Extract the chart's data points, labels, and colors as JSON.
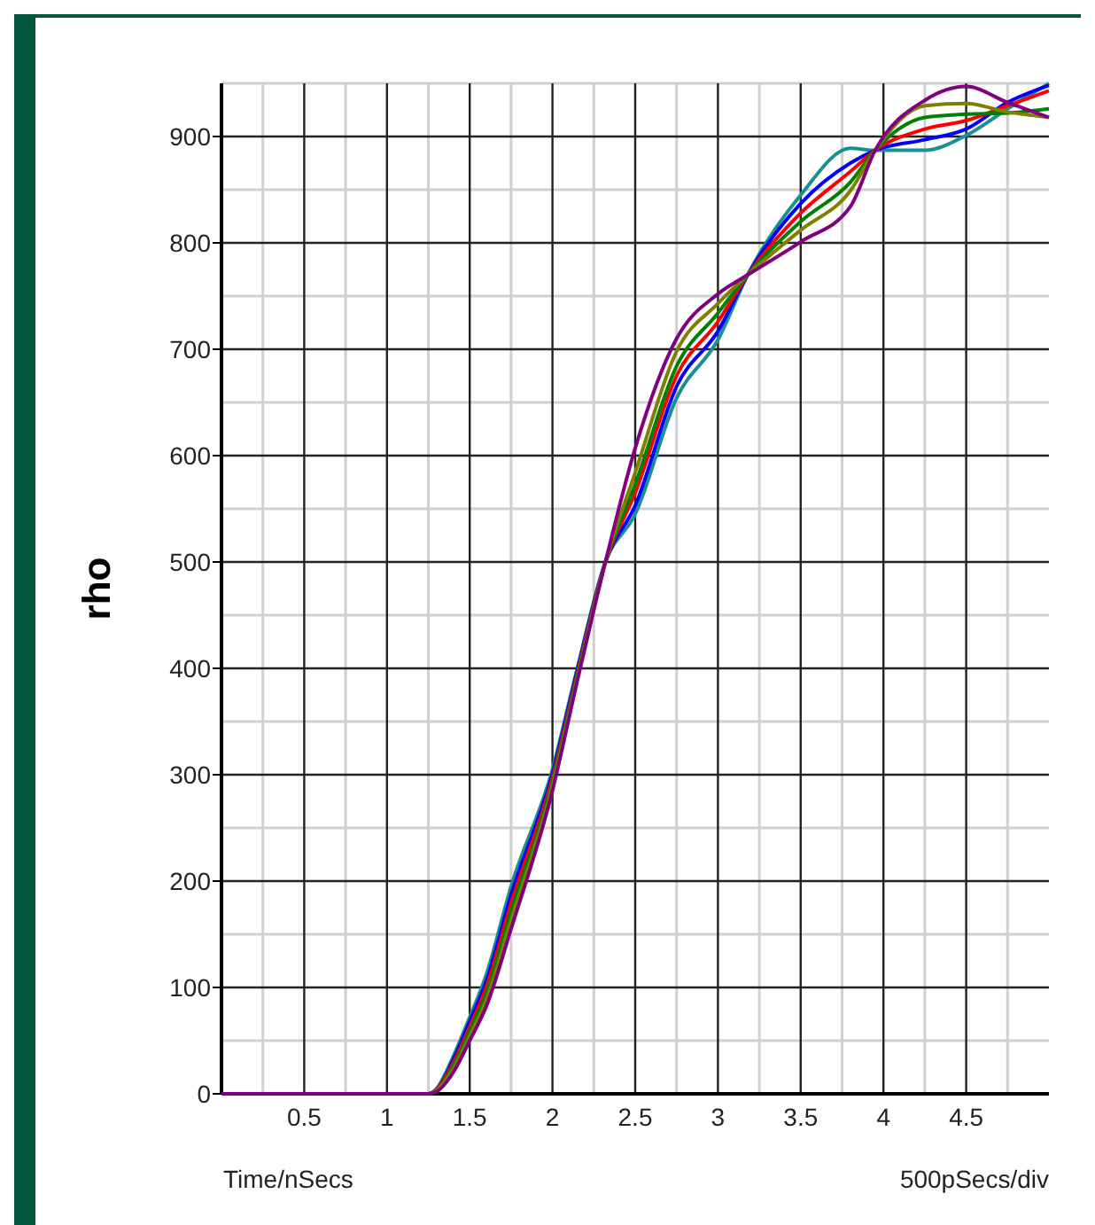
{
  "chart_data": {
    "type": "line",
    "ylabel": "rho",
    "xlabel": "Time/nSecs",
    "annotations": [
      "500pSecs/div"
    ],
    "x": [
      0,
      1.25,
      1.3,
      1.4,
      1.5,
      1.6,
      1.75,
      2.0,
      2.15,
      2.32,
      2.5,
      2.75,
      3.0,
      3.18,
      3.5,
      3.8,
      3.95,
      4.25,
      4.5,
      4.75,
      5.0
    ],
    "xlim": [
      0,
      5
    ],
    "xticks": [
      0.5,
      1,
      1.5,
      2,
      2.5,
      3,
      3.5,
      4,
      4.5
    ],
    "ylim": [
      0,
      950
    ],
    "yticks": [
      0,
      100,
      200,
      300,
      400,
      500,
      600,
      700,
      800,
      900
    ],
    "grid": true,
    "marker": "none",
    "line_style": "solid",
    "series": [
      {
        "color": "#1a9090",
        "values": [
          0,
          0,
          5,
          35,
          72,
          112,
          195,
          305,
          400,
          500,
          545,
          654,
          709,
          770,
          845,
          889,
          887,
          887,
          901,
          926,
          950
        ]
      },
      {
        "color": "#0000ff",
        "values": [
          0,
          0,
          4,
          32,
          68,
          106,
          187,
          301,
          398,
          500,
          553,
          665,
          717,
          770,
          837,
          875,
          887,
          897,
          907,
          932,
          948
        ]
      },
      {
        "color": "#ff0000",
        "values": [
          0,
          0,
          4,
          29,
          63,
          100,
          179,
          297,
          395,
          500,
          565,
          675,
          726,
          770,
          828,
          867,
          887,
          907,
          915,
          929,
          943
        ]
      },
      {
        "color": "#008000",
        "values": [
          0,
          0,
          3,
          26,
          59,
          94,
          171,
          293,
          393,
          500,
          573,
          684,
          734,
          770,
          820,
          857,
          887,
          918,
          921,
          922,
          926
        ]
      },
      {
        "color": "#808000",
        "values": [
          0,
          0,
          3,
          23,
          54,
          88,
          163,
          289,
          390,
          500,
          584,
          698,
          743,
          770,
          812,
          849,
          887,
          929,
          931,
          923,
          918
        ]
      },
      {
        "color": "#800080",
        "values": [
          0,
          0,
          2,
          20,
          50,
          82,
          155,
          285,
          388,
          500,
          607,
          710,
          752,
          770,
          801,
          834,
          887,
          934,
          947,
          932,
          918
        ]
      }
    ]
  }
}
